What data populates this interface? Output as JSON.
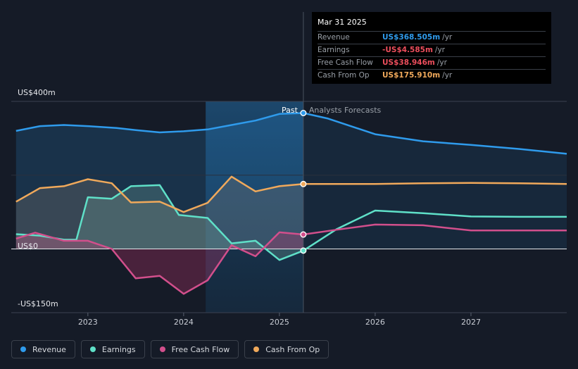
{
  "tooltip": {
    "date": "Mar 31 2025",
    "rows": [
      {
        "label": "Revenue",
        "value": "US$368.505m",
        "unit": "/yr",
        "color": "#2f9bec"
      },
      {
        "label": "Earnings",
        "value": "-US$4.585m",
        "unit": "/yr",
        "color": "#ec4e5c"
      },
      {
        "label": "Free Cash Flow",
        "value": "US$38.946m",
        "unit": "/yr",
        "color": "#ec4e5c"
      },
      {
        "label": "Cash From Op",
        "value": "US$175.910m",
        "unit": "/yr",
        "color": "#f0a95b"
      }
    ]
  },
  "legend": [
    {
      "label": "Revenue",
      "color": "#2f9bec"
    },
    {
      "label": "Earnings",
      "color": "#5fe0c8"
    },
    {
      "label": "Free Cash Flow",
      "color": "#d24f8c"
    },
    {
      "label": "Cash From Op",
      "color": "#f0a95b"
    }
  ],
  "chart_data": {
    "type": "line",
    "y_tick_labels": [
      "US$400m",
      "US$0",
      "-US$150m"
    ],
    "ylim": [
      -150,
      400
    ],
    "xlim": [
      2022.2,
      2028.0
    ],
    "x_tick_labels": [
      "2023",
      "2024",
      "2025",
      "2026",
      "2027"
    ],
    "x_ticks": [
      2023,
      2024,
      2025,
      2026,
      2027
    ],
    "divider_labels": {
      "past": "Past",
      "forecast": "Analysts Forecasts"
    },
    "present_x": 2025.25,
    "series": [
      {
        "name": "Revenue",
        "color": "#2f9bec",
        "points": [
          [
            2022.25,
            320
          ],
          [
            2022.5,
            333
          ],
          [
            2022.75,
            336
          ],
          [
            2023.0,
            333
          ],
          [
            2023.3,
            328
          ],
          [
            2023.5,
            322
          ],
          [
            2023.75,
            316
          ],
          [
            2024.0,
            319
          ],
          [
            2024.25,
            324
          ],
          [
            2024.5,
            336
          ],
          [
            2024.75,
            348
          ],
          [
            2025.0,
            366
          ],
          [
            2025.25,
            368.5
          ]
        ],
        "forecast": [
          [
            2025.25,
            368.5
          ],
          [
            2025.5,
            354
          ],
          [
            2026.0,
            311
          ],
          [
            2026.5,
            292
          ],
          [
            2027.0,
            282
          ],
          [
            2027.5,
            271
          ],
          [
            2028.0,
            258
          ]
        ]
      },
      {
        "name": "Earnings",
        "color": "#5fe0c8",
        "points": [
          [
            2022.25,
            40
          ],
          [
            2022.5,
            36
          ],
          [
            2022.75,
            25
          ],
          [
            2022.88,
            25
          ],
          [
            2023.0,
            140
          ],
          [
            2023.25,
            136
          ],
          [
            2023.45,
            170
          ],
          [
            2023.75,
            173
          ],
          [
            2023.95,
            92
          ],
          [
            2024.25,
            84
          ],
          [
            2024.5,
            15
          ],
          [
            2024.75,
            22
          ],
          [
            2025.0,
            -30
          ],
          [
            2025.25,
            -4.6
          ]
        ],
        "forecast": [
          [
            2025.25,
            -4.6
          ],
          [
            2025.6,
            54
          ],
          [
            2026.0,
            104
          ],
          [
            2026.5,
            97
          ],
          [
            2027.0,
            88
          ],
          [
            2027.5,
            87
          ],
          [
            2028.0,
            87
          ]
        ]
      },
      {
        "name": "Free Cash Flow",
        "color": "#d24f8c",
        "points": [
          [
            2022.25,
            28
          ],
          [
            2022.45,
            44
          ],
          [
            2022.75,
            22
          ],
          [
            2023.0,
            22
          ],
          [
            2023.25,
            0
          ],
          [
            2023.5,
            -80
          ],
          [
            2023.75,
            -73
          ],
          [
            2024.0,
            -122
          ],
          [
            2024.25,
            -85
          ],
          [
            2024.5,
            10
          ],
          [
            2024.75,
            -20
          ],
          [
            2025.0,
            45
          ],
          [
            2025.25,
            39
          ]
        ],
        "forecast": [
          [
            2025.25,
            39
          ],
          [
            2025.6,
            52
          ],
          [
            2026.0,
            66
          ],
          [
            2026.5,
            64
          ],
          [
            2027.0,
            50
          ],
          [
            2027.5,
            50
          ],
          [
            2028.0,
            50
          ]
        ]
      },
      {
        "name": "Cash From Op",
        "color": "#f0a95b",
        "points": [
          [
            2022.25,
            128
          ],
          [
            2022.5,
            165
          ],
          [
            2022.75,
            170
          ],
          [
            2023.0,
            189
          ],
          [
            2023.25,
            178
          ],
          [
            2023.45,
            126
          ],
          [
            2023.75,
            128
          ],
          [
            2024.0,
            100
          ],
          [
            2024.25,
            125
          ],
          [
            2024.5,
            196
          ],
          [
            2024.75,
            156
          ],
          [
            2025.0,
            170
          ],
          [
            2025.25,
            176
          ]
        ],
        "forecast": [
          [
            2025.25,
            176
          ],
          [
            2026.0,
            176
          ],
          [
            2026.5,
            178
          ],
          [
            2027.0,
            179
          ],
          [
            2027.5,
            178
          ],
          [
            2028.0,
            176
          ]
        ]
      }
    ]
  }
}
